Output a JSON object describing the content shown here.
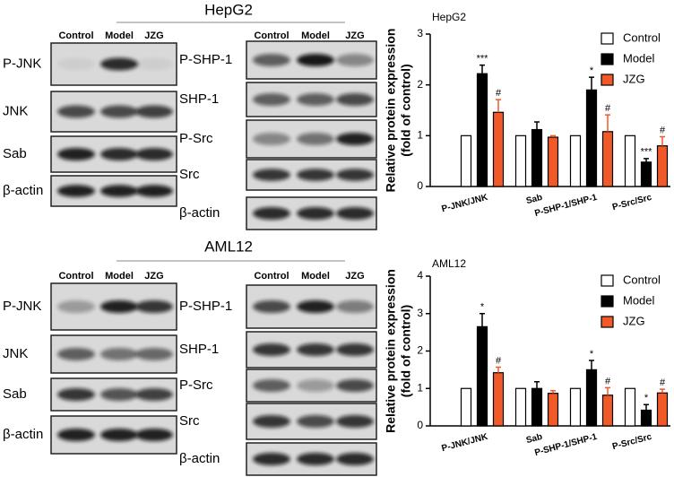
{
  "blots": [
    {
      "title": "HepG2",
      "columns": [
        "Control",
        "Model",
        "JZG"
      ],
      "left_rows": [
        "P-JNK",
        "JNK",
        "Sab",
        "β-actin"
      ],
      "right_rows": [
        "P-SHP-1",
        "SHP-1",
        "P-Src",
        "Src",
        "β-actin"
      ]
    },
    {
      "title": "AML12",
      "columns": [
        "Control",
        "Model",
        "JZG"
      ],
      "left_rows": [
        "P-JNK",
        "JNK",
        "Sab",
        "β-actin"
      ],
      "right_rows": [
        "P-SHP-1",
        "SHP-1",
        "P-Src",
        "Src",
        "β-actin"
      ]
    }
  ],
  "chart_data": [
    {
      "type": "bar",
      "title": "HepG2",
      "ylabel": [
        "Relative protein expression",
        "(fold of control)"
      ],
      "categories": [
        "P-JNK/JNK",
        "Sab",
        "P-SHP-1/SHP-1",
        "P-Src/Src"
      ],
      "series": [
        {
          "name": "Control",
          "color": "#ffffff",
          "values": [
            1,
            1,
            1,
            1
          ]
        },
        {
          "name": "Model",
          "color": "#000000",
          "values": [
            2.22,
            1.12,
            1.9,
            0.48
          ],
          "errors": [
            0.17,
            0.15,
            0.25,
            0.07
          ],
          "annotations": [
            "***",
            null,
            "*",
            "***"
          ]
        },
        {
          "name": "JZG",
          "color": "#f05a28",
          "values": [
            1.46,
            0.97,
            1.08,
            0.8
          ],
          "errors": [
            0.25,
            0.03,
            0.33,
            0.18
          ],
          "annotations": [
            "#",
            null,
            "#",
            "#"
          ]
        }
      ],
      "ylim": [
        0,
        3
      ],
      "yticks": [
        0,
        1,
        2,
        3
      ],
      "legend": "top-right"
    },
    {
      "type": "bar",
      "title": "AML12",
      "ylabel": [
        "Relative protein expression",
        "(fold of control)"
      ],
      "categories": [
        "P-JNK/JNK",
        "Sab",
        "P-SHP-1/SHP-1",
        "P-Src/Src"
      ],
      "series": [
        {
          "name": "Control",
          "color": "#ffffff",
          "values": [
            1,
            1,
            1,
            1
          ]
        },
        {
          "name": "Model",
          "color": "#000000",
          "values": [
            2.65,
            1.0,
            1.5,
            0.42
          ],
          "errors": [
            0.35,
            0.18,
            0.25,
            0.15
          ],
          "annotations": [
            "*",
            null,
            "*",
            "*"
          ]
        },
        {
          "name": "JZG",
          "color": "#f05a28",
          "values": [
            1.42,
            0.87,
            0.82,
            0.88
          ],
          "errors": [
            0.15,
            0.07,
            0.2,
            0.1
          ],
          "annotations": [
            "#",
            null,
            "#",
            "#"
          ]
        }
      ],
      "ylim": [
        0,
        4
      ],
      "yticks": [
        0,
        1,
        2,
        3,
        4
      ],
      "legend": "top-right"
    }
  ]
}
